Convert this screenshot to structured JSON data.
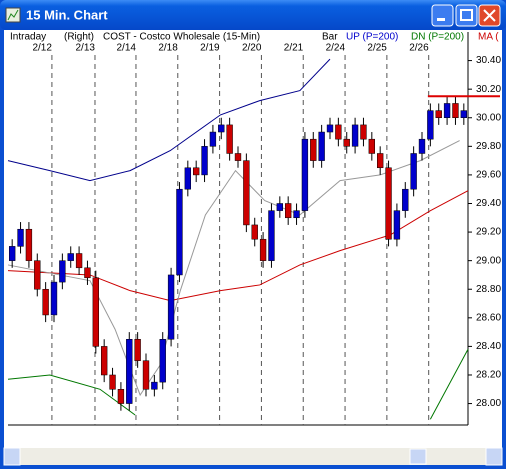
{
  "window": {
    "title": "15 Min. Chart"
  },
  "chart_data": {
    "type": "candlestick",
    "header": {
      "mode": "Intraday",
      "axis_side": "(Right)",
      "symbol": "COST - Costco Wholesale  (15-Min)",
      "style": "Bar",
      "up": "UP (P=200)",
      "dn": "DN (P=200)",
      "ma": "MA ("
    },
    "open": [
      29.0,
      29.1,
      29.22,
      29.0,
      28.8,
      28.62,
      28.85,
      29.0,
      29.05,
      28.95,
      28.88,
      28.4,
      28.2,
      28.1,
      28.0,
      28.45,
      28.3,
      28.1,
      28.15,
      28.45,
      28.9,
      29.5,
      29.65,
      29.6,
      29.8,
      29.9,
      29.95,
      29.75,
      29.7,
      29.25,
      29.15,
      29.0,
      29.35,
      29.4,
      29.3,
      29.35,
      29.85,
      29.7,
      29.9,
      29.95,
      29.85,
      29.8,
      29.95,
      29.85,
      29.75,
      29.65,
      29.15,
      29.35,
      29.5,
      29.75,
      29.85,
      30.05,
      30.0,
      30.1,
      30.0
    ],
    "high": [
      29.15,
      29.27,
      29.27,
      29.05,
      28.85,
      28.9,
      29.05,
      29.1,
      29.1,
      29.0,
      28.93,
      28.45,
      28.25,
      28.15,
      28.5,
      28.5,
      28.35,
      28.2,
      28.5,
      28.95,
      29.55,
      29.7,
      29.7,
      29.85,
      29.95,
      30.0,
      30.0,
      29.8,
      29.75,
      29.3,
      29.2,
      29.4,
      29.45,
      29.45,
      29.4,
      29.9,
      29.9,
      29.95,
      30.0,
      30.0,
      29.9,
      30.0,
      30.0,
      29.9,
      29.8,
      29.7,
      29.4,
      29.55,
      29.8,
      29.9,
      30.1,
      30.1,
      30.15,
      30.15,
      30.1
    ],
    "low": [
      28.95,
      29.05,
      28.95,
      28.75,
      28.57,
      28.57,
      28.8,
      28.95,
      28.9,
      28.83,
      28.35,
      28.15,
      28.05,
      27.95,
      27.95,
      28.25,
      28.05,
      28.05,
      28.1,
      28.4,
      28.85,
      29.45,
      29.55,
      29.55,
      29.75,
      29.85,
      29.7,
      29.65,
      29.2,
      29.1,
      28.95,
      28.95,
      29.3,
      29.25,
      29.25,
      29.3,
      29.65,
      29.65,
      29.85,
      29.8,
      29.75,
      29.75,
      29.8,
      29.7,
      29.6,
      29.1,
      29.1,
      29.3,
      29.45,
      29.7,
      29.8,
      29.95,
      29.95,
      29.95,
      29.95
    ],
    "close": [
      29.1,
      29.22,
      29.0,
      28.8,
      28.62,
      28.85,
      29.0,
      29.05,
      28.95,
      28.88,
      28.4,
      28.2,
      28.1,
      28.0,
      28.45,
      28.3,
      28.1,
      28.15,
      28.45,
      28.9,
      29.5,
      29.65,
      29.6,
      29.8,
      29.9,
      29.95,
      29.75,
      29.7,
      29.25,
      29.15,
      29.0,
      29.35,
      29.4,
      29.3,
      29.35,
      29.85,
      29.7,
      29.9,
      29.95,
      29.85,
      29.8,
      29.95,
      29.85,
      29.75,
      29.65,
      29.15,
      29.35,
      29.5,
      29.75,
      29.85,
      30.05,
      30.0,
      30.1,
      30.0,
      30.05
    ],
    "up_color": "#0000cc",
    "down_color": "#cc0000",
    "lines": [
      {
        "color": "#00008b",
        "x": [
          0,
          5,
          9.8,
          14.6,
          19.4,
          25.4,
          30.1,
          34.9,
          38.5
        ],
        "values": [
          29.7,
          29.63,
          29.56,
          29.63,
          29.77,
          30.02,
          30.12,
          30.19,
          30.41
        ]
      },
      {
        "color": "#cc0000",
        "x": [
          0,
          9.8,
          14.6,
          19.4,
          25.4,
          30.1,
          34.9,
          39.7,
          45.7,
          50.5,
          55
        ],
        "values": [
          28.93,
          28.9,
          28.79,
          28.72,
          28.79,
          28.83,
          28.97,
          29.07,
          29.18,
          29.35,
          29.49
        ]
      },
      {
        "color": "#999999",
        "x": [
          0,
          6.2,
          9.8,
          12.8,
          15.8,
          18.2,
          20.6,
          23.6,
          27.2,
          30.7,
          34.9,
          39.7,
          44.5,
          49.3,
          54
        ],
        "values": [
          28.97,
          28.9,
          28.86,
          28.52,
          28.06,
          28.27,
          28.79,
          29.32,
          29.63,
          29.42,
          29.32,
          29.56,
          29.6,
          29.7,
          29.84
        ]
      },
      {
        "color": "#007700",
        "x": [
          0,
          5,
          11,
          15.2,
          null,
          50.5,
          55
        ],
        "values": [
          28.17,
          28.2,
          28.1,
          27.92,
          null,
          27.89,
          28.38
        ]
      }
    ],
    "price_line": 30.15,
    "price_line_color": "#dd0000",
    "xlim": [
      0,
      55
    ],
    "xticks": [
      {
        "value": 5.25,
        "label": "2/12"
      },
      {
        "value": 10.4,
        "label": "2/13"
      },
      {
        "value": 15.3,
        "label": "2/14"
      },
      {
        "value": 20.3,
        "label": "2/18"
      },
      {
        "value": 25.3,
        "label": "2/19"
      },
      {
        "value": 30.3,
        "label": "2/20"
      },
      {
        "value": 35.3,
        "label": "2/21"
      },
      {
        "value": 40.3,
        "label": "2/24"
      },
      {
        "value": 45.3,
        "label": "2/25"
      },
      {
        "value": 50.3,
        "label": "2/26"
      }
    ],
    "ylim": [
      27.85,
      30.6
    ],
    "yticks": [
      {
        "value": 28,
        "label": "28.00"
      },
      {
        "value": 28.2,
        "label": "28.20"
      },
      {
        "value": 28.4,
        "label": "28.40"
      },
      {
        "value": 28.6,
        "label": "28.60"
      },
      {
        "value": 28.8,
        "label": "28.80"
      },
      {
        "value": 29,
        "label": "29.00"
      },
      {
        "value": 29.2,
        "label": "29.20"
      },
      {
        "value": 29.4,
        "label": "29.40"
      },
      {
        "value": 29.6,
        "label": "29.60"
      },
      {
        "value": 29.8,
        "label": "29.80"
      },
      {
        "value": 30,
        "label": "30.00"
      },
      {
        "value": 30.2,
        "label": "30.20"
      },
      {
        "value": 30.4,
        "label": "30.40"
      }
    ]
  }
}
